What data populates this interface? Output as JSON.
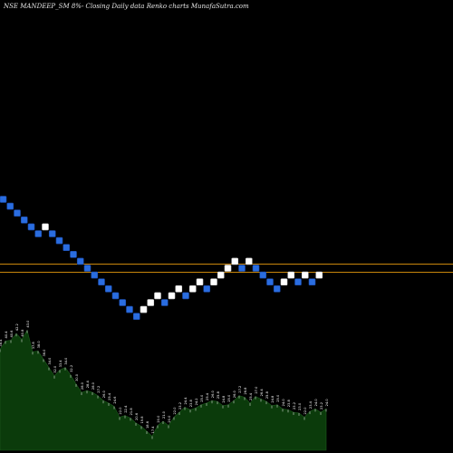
{
  "header": {
    "title": "NSE MANDEEP_SM 8%-  Closing Daily data  Renko  charts MunafaSutra.com"
  },
  "colors": {
    "background": "#000000",
    "up_brick": "#ffffff",
    "down_brick": "#2a6de0",
    "brick_border": "#1b4aa8",
    "reference_line": "#c8860c",
    "volume_fill": "#0b3b0b",
    "volume_outline": "#ffffff"
  },
  "chart_data": [
    {
      "type": "renko",
      "title": "NSE MANDEEP_SM 8%-  Closing Daily data  Renko  charts MunafaSutra.com",
      "brick_levels": [
        0,
        1,
        2,
        3,
        4,
        5,
        4,
        5,
        6,
        7,
        8,
        9,
        10,
        11,
        12,
        13,
        14,
        15,
        16,
        17,
        16,
        15,
        14,
        15,
        14,
        13,
        14,
        13,
        12,
        13,
        12,
        11,
        10,
        9,
        10,
        9,
        10,
        11,
        12,
        13,
        12,
        11,
        12,
        11,
        12,
        11
      ],
      "brick_directions": [
        "down",
        "down",
        "down",
        "down",
        "down",
        "down",
        "up",
        "down",
        "down",
        "down",
        "down",
        "down",
        "down",
        "down",
        "down",
        "down",
        "down",
        "down",
        "down",
        "down",
        "up",
        "up",
        "up",
        "down",
        "up",
        "up",
        "down",
        "up",
        "up",
        "down",
        "up",
        "up",
        "up",
        "up",
        "down",
        "up",
        "down",
        "down",
        "down",
        "down",
        "up",
        "up",
        "down",
        "up",
        "down",
        "up"
      ],
      "reference_levels": [
        9.4,
        10.6
      ],
      "ylim": [
        0,
        17
      ]
    },
    {
      "type": "area",
      "tick_labels": [
        "38.4",
        "40.4",
        "40.6",
        "42.2",
        "40.8",
        "43.0",
        "37.8",
        "38.0",
        "36.0",
        "34.0",
        "32.0",
        "33.4",
        "34.0",
        "32.2",
        "30.0",
        "28.0",
        "28.4",
        "28.0",
        "27.2",
        "26.0",
        "25.4",
        "24.6",
        "22.0",
        "22.4",
        "21.8",
        "20.6",
        "19.8",
        "18.6",
        "17.4",
        "20.0",
        "21.0",
        "20.0",
        "22.0",
        "23.2",
        "24.4",
        "23.8",
        "24.2",
        "25.0",
        "25.4",
        "26.0",
        "25.8",
        "24.8",
        "25.0",
        "26.0",
        "27.2",
        "26.8",
        "25.4",
        "27.0",
        "26.4",
        "25.8",
        "24.8",
        "25.0",
        "24.0",
        "23.8",
        "23.2",
        "23.0",
        "22.0",
        "23.4",
        "24.0",
        "23.2",
        "24.0"
      ],
      "values": [
        38.4,
        40.4,
        40.6,
        42.2,
        40.8,
        43.0,
        37.8,
        38.0,
        36.0,
        34.0,
        32.0,
        33.4,
        34.0,
        32.2,
        30.0,
        28.0,
        28.4,
        28.0,
        27.2,
        26.0,
        25.4,
        24.6,
        22.0,
        22.4,
        21.8,
        20.6,
        19.8,
        18.6,
        17.4,
        20.0,
        21.0,
        20.0,
        22.0,
        23.2,
        24.4,
        23.8,
        24.2,
        25.0,
        25.4,
        26.0,
        25.8,
        24.8,
        25.0,
        26.0,
        27.2,
        26.8,
        25.4,
        27.0,
        26.4,
        25.8,
        24.8,
        25.0,
        24.0,
        23.8,
        23.2,
        23.0,
        22.0,
        23.4,
        24.0,
        23.2,
        24.0
      ],
      "ylim": [
        14,
        44
      ]
    }
  ]
}
